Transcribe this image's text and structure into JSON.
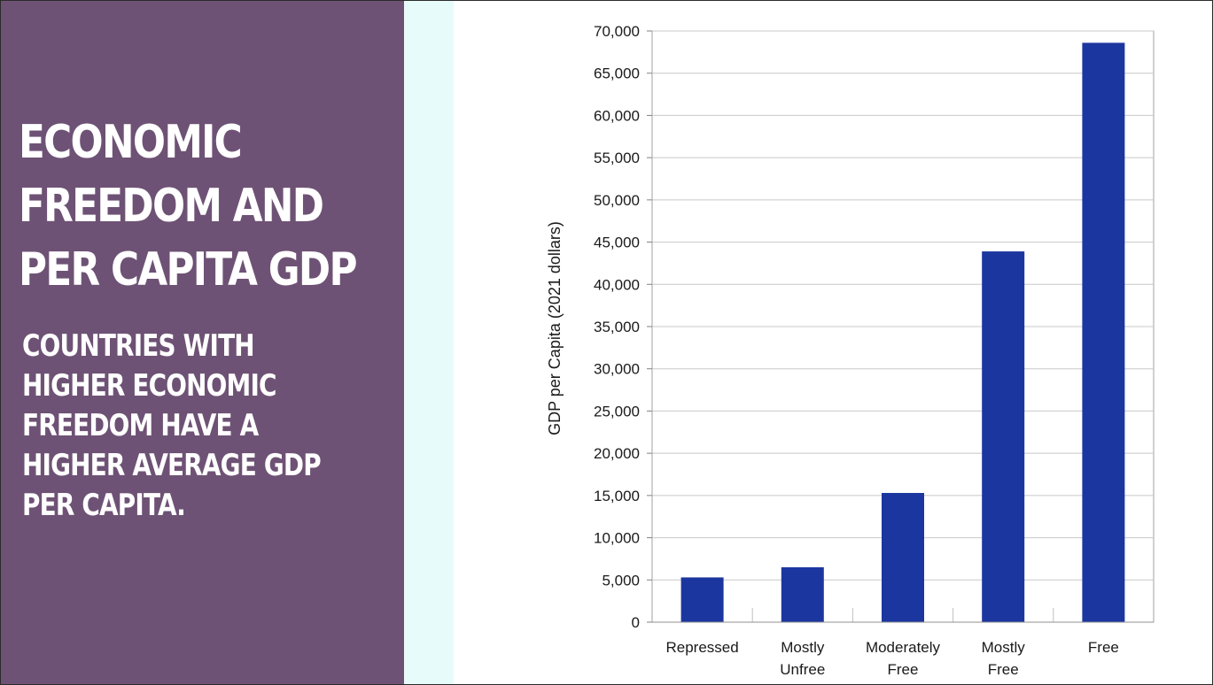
{
  "slide": {
    "title_lines": [
      "ECONOMIC",
      "FREEDOM AND",
      "PER CAPITA GDP"
    ],
    "subtitle_lines": [
      "COUNTRIES WITH",
      "HIGHER ECONOMIC",
      "FREEDOM HAVE A",
      "HIGHER AVERAGE GDP",
      "PER CAPITA."
    ]
  },
  "chart_data": {
    "type": "bar",
    "categories": [
      [
        "Repressed"
      ],
      [
        "Mostly",
        "Unfree"
      ],
      [
        "Moderately",
        "Free"
      ],
      [
        "Mostly",
        "Free"
      ],
      [
        "Free"
      ]
    ],
    "values": [
      5300,
      6500,
      15300,
      43900,
      68600
    ],
    "title": "",
    "xlabel": "",
    "ylabel": "GDP per Capita (2021 dollars)",
    "ylim": [
      0,
      70000
    ],
    "yticks": [
      0,
      5000,
      10000,
      15000,
      20000,
      25000,
      30000,
      35000,
      40000,
      45000,
      50000,
      55000,
      60000,
      65000,
      70000
    ],
    "ytick_labels": [
      "0",
      "5,000",
      "10,000",
      "15,000",
      "20,000",
      "25,000",
      "30,000",
      "35,000",
      "40,000",
      "45,000",
      "50,000",
      "55,000",
      "60,000",
      "65,000",
      "70,000"
    ],
    "grid": true,
    "legend": "none",
    "bar_color": "#1c36a0",
    "grid_color": "#c8c8c8"
  },
  "colors": {
    "panel": "#6e5275",
    "strip": "#e7fbfb",
    "text": "#ffffff"
  }
}
